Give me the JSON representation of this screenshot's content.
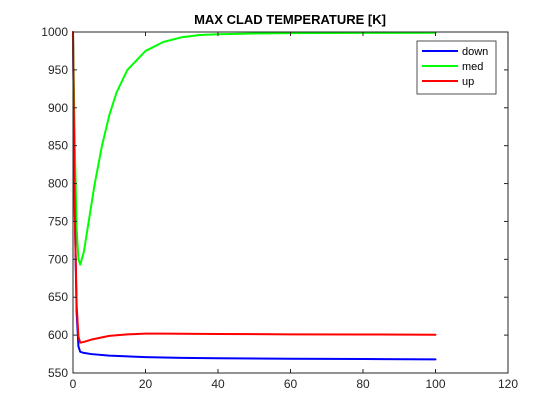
{
  "chart_data": {
    "type": "line",
    "title": "MAX CLAD TEMPERATURE [K]",
    "xlabel": "",
    "ylabel": "",
    "xlim": [
      0,
      120
    ],
    "ylim": [
      550,
      1000
    ],
    "x_ticks": [
      0,
      20,
      40,
      60,
      80,
      100,
      120
    ],
    "y_ticks": [
      550,
      600,
      650,
      700,
      750,
      800,
      850,
      900,
      950,
      1000
    ],
    "grid": false,
    "legend_position": "top-right",
    "series": [
      {
        "name": "down",
        "color": "#0000ff",
        "x": [
          0,
          0.5,
          1,
          1.5,
          2,
          3,
          5,
          10,
          20,
          30,
          40,
          60,
          80,
          100
        ],
        "y": [
          1000,
          760,
          630,
          585,
          578,
          576.5,
          575,
          573,
          571,
          570,
          569.5,
          568.8,
          568.4,
          568
        ]
      },
      {
        "name": "med",
        "color": "#00ff00",
        "x": [
          0,
          0.5,
          1,
          1.5,
          2,
          3,
          4,
          5,
          6,
          8,
          10,
          12,
          15,
          20,
          25,
          30,
          35,
          40,
          50,
          60,
          70,
          80,
          90,
          100
        ],
        "y": [
          1000,
          850,
          740,
          700,
          693,
          710,
          740,
          770,
          800,
          850,
          890,
          920,
          950,
          975,
          987,
          993,
          996,
          997,
          998,
          998.5,
          998.7,
          998.8,
          998.9,
          999
        ]
      },
      {
        "name": "up",
        "color": "#ff0000",
        "x": [
          0,
          0.5,
          1,
          1.5,
          2,
          3,
          5,
          8,
          10,
          15,
          20,
          25,
          30,
          40,
          60,
          80,
          100
        ],
        "y": [
          1000,
          760,
          640,
          598,
          590,
          591,
          594,
          597,
          599,
          601,
          602,
          602,
          601.8,
          601.5,
          601,
          600.8,
          600.5
        ]
      }
    ]
  }
}
